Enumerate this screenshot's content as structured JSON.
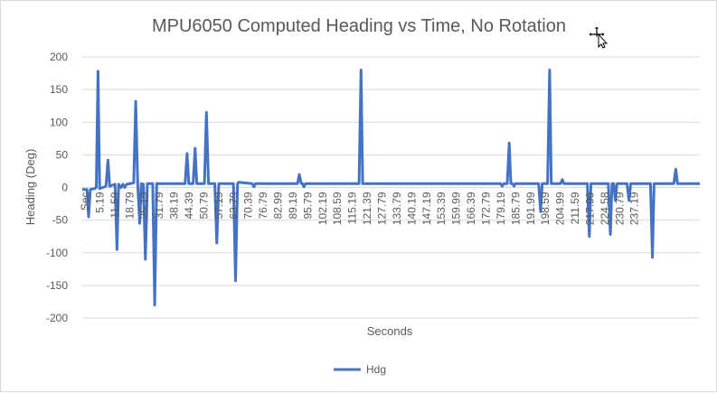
{
  "chart_data": {
    "type": "line",
    "title": "MPU6050 Computed Heading vs Time, No Rotation",
    "xlabel": "Seconds",
    "ylabel": "Heading (Deg)",
    "ylim": [
      -200,
      200
    ],
    "yticks": [
      200,
      150,
      100,
      50,
      0,
      -50,
      -100,
      -150,
      -200
    ],
    "grid": true,
    "legend_position": "bottom",
    "series_color": "#4472c4",
    "x_tick_labels": [
      "Sec",
      "5.19",
      "11.59",
      "18.79",
      "25.19",
      "31.79",
      "38.19",
      "44.39",
      "50.79",
      "57.19",
      "63.79",
      "70.39",
      "76.79",
      "82.99",
      "89.19",
      "95.79",
      "102.19",
      "108.59",
      "115.19",
      "121.39",
      "127.79",
      "133.79",
      "140.19",
      "147.19",
      "153.39",
      "159.99",
      "166.39",
      "172.79",
      "179.19",
      "185.79",
      "191.99",
      "198.59",
      "204.99",
      "211.59",
      "217.99",
      "224.58",
      "230.79",
      "237.19"
    ],
    "series": [
      {
        "name": "Hdg",
        "points": [
          [
            0,
            -3
          ],
          [
            1.4,
            -3
          ],
          [
            1.9,
            -45
          ],
          [
            2.4,
            -3
          ],
          [
            3.6,
            -2
          ],
          [
            4.2,
            0
          ],
          [
            4.7,
            178
          ],
          [
            5.2,
            -2
          ],
          [
            7.1,
            2
          ],
          [
            7.7,
            42
          ],
          [
            8.2,
            2
          ],
          [
            9.8,
            5
          ],
          [
            10.4,
            -95
          ],
          [
            10.9,
            5
          ],
          [
            11.6,
            0
          ],
          [
            12.2,
            5
          ],
          [
            12.7,
            0
          ],
          [
            13.3,
            5
          ],
          [
            15.4,
            7
          ],
          [
            16.0,
            132
          ],
          [
            16.6,
            6
          ],
          [
            17.2,
            -55
          ],
          [
            17.7,
            6
          ],
          [
            18.3,
            5
          ],
          [
            18.9,
            -110
          ],
          [
            19.5,
            6
          ],
          [
            21.1,
            6
          ],
          [
            21.7,
            -180
          ],
          [
            22.3,
            6
          ],
          [
            30.8,
            6
          ],
          [
            31.4,
            52
          ],
          [
            31.9,
            6
          ],
          [
            33.2,
            6
          ],
          [
            33.8,
            60
          ],
          [
            34.3,
            6
          ],
          [
            36.6,
            6
          ],
          [
            37.2,
            115
          ],
          [
            37.8,
            6
          ],
          [
            39.7,
            6
          ],
          [
            40.3,
            -85
          ],
          [
            40.9,
            6
          ],
          [
            45.3,
            6
          ],
          [
            45.9,
            -143
          ],
          [
            46.5,
            6
          ],
          [
            46.9,
            8
          ],
          [
            50.9,
            6
          ],
          [
            51.4,
            1
          ],
          [
            51.9,
            6
          ],
          [
            64.5,
            6
          ],
          [
            65.0,
            20
          ],
          [
            65.6,
            6
          ],
          [
            66.0,
            6
          ],
          [
            66.4,
            1
          ],
          [
            66.9,
            6
          ],
          [
            82.9,
            6
          ],
          [
            83.5,
            180
          ],
          [
            84.0,
            6
          ],
          [
            125.3,
            6
          ],
          [
            125.8,
            2
          ],
          [
            126.3,
            6
          ],
          [
            127.3,
            6
          ],
          [
            127.9,
            68
          ],
          [
            128.4,
            6
          ],
          [
            128.9,
            6
          ],
          [
            129.3,
            2
          ],
          [
            129.8,
            6
          ],
          [
            136.7,
            6
          ],
          [
            137.3,
            -37
          ],
          [
            137.8,
            6
          ],
          [
            139.4,
            6
          ],
          [
            140.0,
            180
          ],
          [
            140.5,
            6
          ],
          [
            143.3,
            6
          ],
          [
            143.8,
            12
          ],
          [
            144.3,
            6
          ],
          [
            151.3,
            6
          ],
          [
            151.9,
            -75
          ],
          [
            152.4,
            6
          ],
          [
            157.6,
            6
          ],
          [
            158.2,
            -72
          ],
          [
            158.7,
            6
          ],
          [
            159.2,
            6
          ],
          [
            159.7,
            -20
          ],
          [
            160.2,
            6
          ],
          [
            163.2,
            6
          ],
          [
            163.8,
            -20
          ],
          [
            164.3,
            6
          ],
          [
            170.2,
            6
          ],
          [
            170.8,
            -107
          ],
          [
            171.3,
            6
          ],
          [
            177.2,
            6
          ],
          [
            177.8,
            28
          ],
          [
            178.3,
            6
          ],
          [
            185.0,
            6
          ]
        ]
      }
    ]
  }
}
